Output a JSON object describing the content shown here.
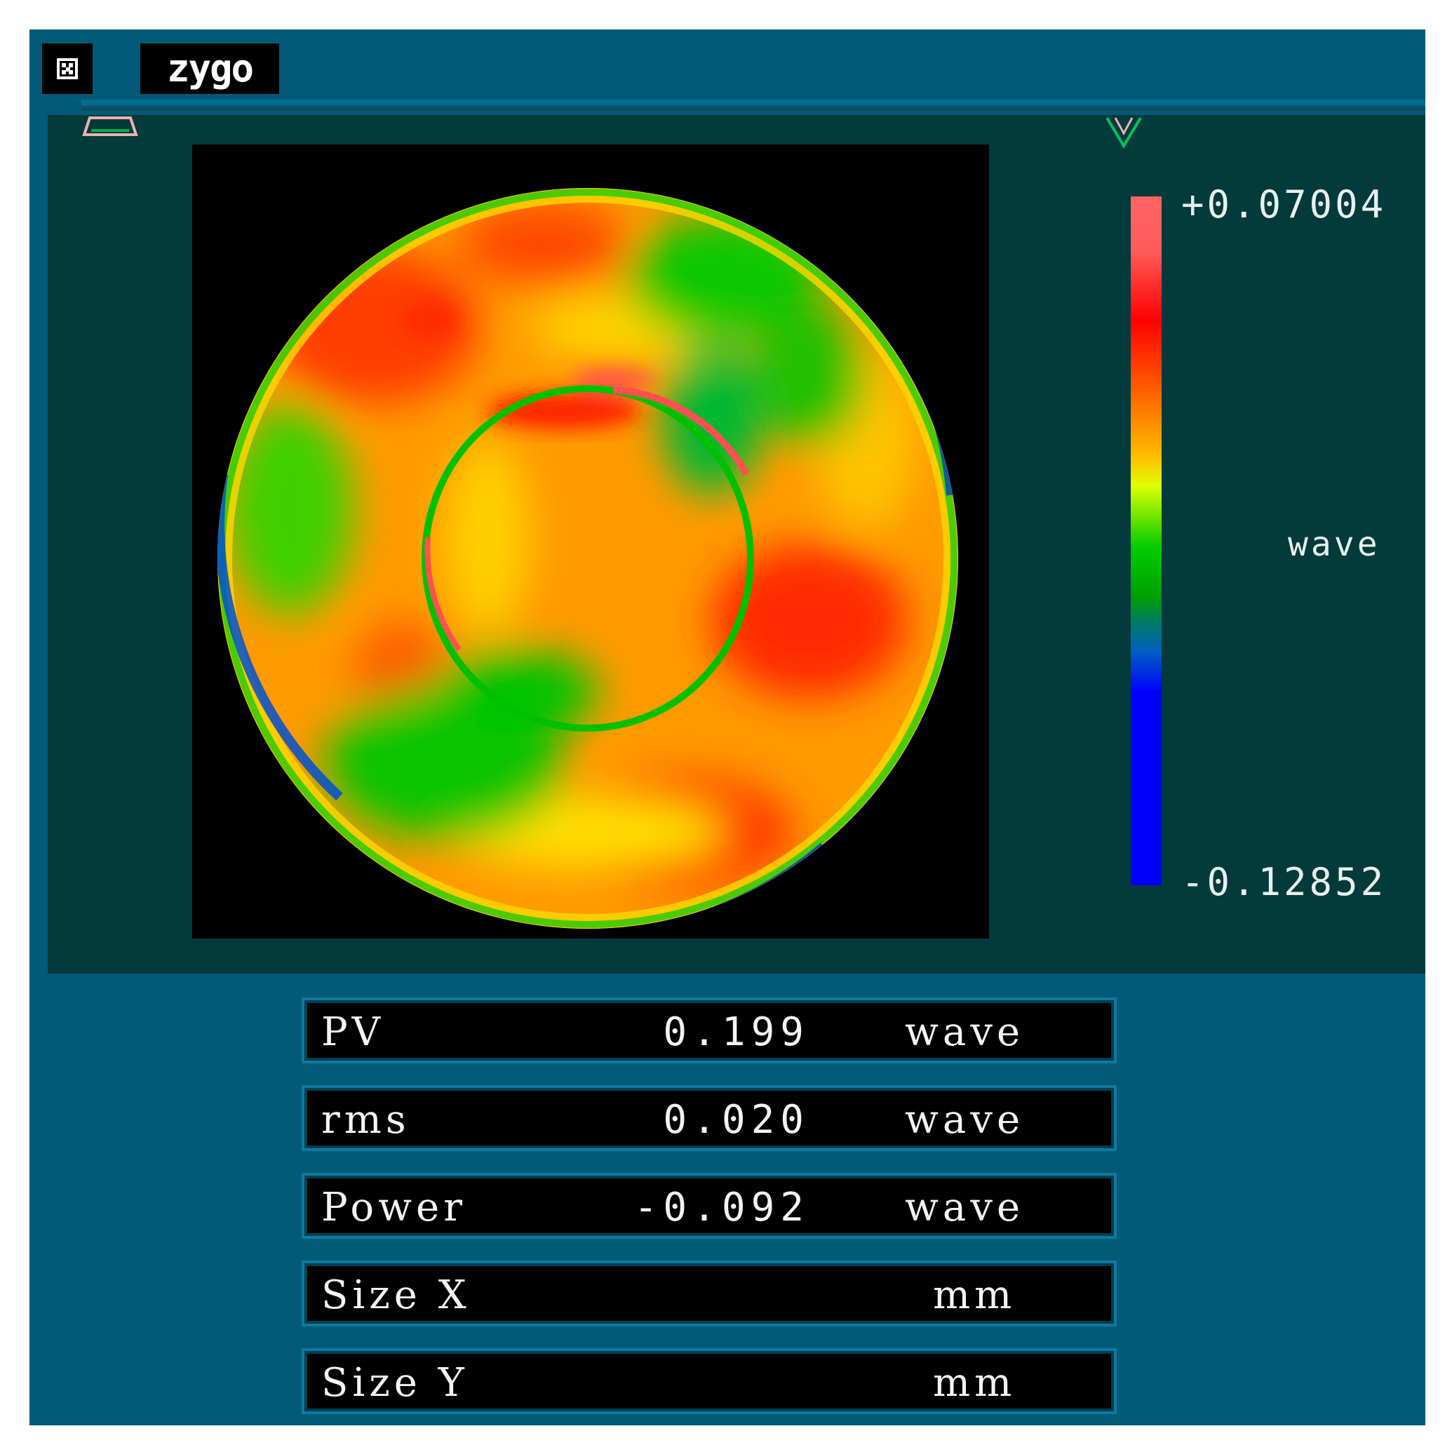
{
  "app": {
    "logo_text": "zygo"
  },
  "colorbar": {
    "max_label": "+0.07004",
    "min_label": "-0.12852",
    "unit": "wave"
  },
  "results": [
    {
      "label": "PV",
      "value": "0.199",
      "unit": "wave"
    },
    {
      "label": "rms",
      "value": "0.020",
      "unit": "wave"
    },
    {
      "label": "Power",
      "value": "-0.092",
      "unit": "wave"
    },
    {
      "label": "Size X",
      "value": "",
      "unit": "mm"
    },
    {
      "label": "Size Y",
      "value": "",
      "unit": "mm"
    }
  ],
  "colors": {
    "window_bg": "#035a78",
    "plot_bg": "#033a3c",
    "map_bg": "#000000"
  }
}
